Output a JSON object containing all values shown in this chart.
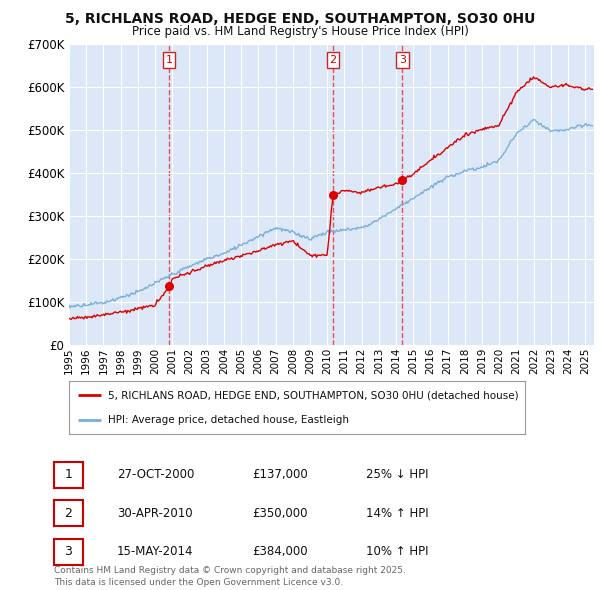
{
  "title": "5, RICHLANS ROAD, HEDGE END, SOUTHAMPTON, SO30 0HU",
  "subtitle": "Price paid vs. HM Land Registry's House Price Index (HPI)",
  "ylim": [
    0,
    700000
  ],
  "yticks": [
    0,
    100000,
    200000,
    300000,
    400000,
    500000,
    600000,
    700000
  ],
  "ytick_labels": [
    "£0",
    "£100K",
    "£200K",
    "£300K",
    "£400K",
    "£500K",
    "£600K",
    "£700K"
  ],
  "background_color": "#dce8f8",
  "grid_color": "#ffffff",
  "sale_color": "#dd0000",
  "hpi_color": "#7aaed6",
  "vline_color": "#ee3333",
  "sale_points": [
    {
      "date": 2000.82,
      "price": 137000,
      "label": "1"
    },
    {
      "date": 2010.33,
      "price": 350000,
      "label": "2"
    },
    {
      "date": 2014.37,
      "price": 384000,
      "label": "3"
    }
  ],
  "table_rows": [
    {
      "num": "1",
      "date": "27-OCT-2000",
      "price": "£137,000",
      "hpi": "25% ↓ HPI"
    },
    {
      "num": "2",
      "date": "30-APR-2010",
      "price": "£350,000",
      "hpi": "14% ↑ HPI"
    },
    {
      "num": "3",
      "date": "15-MAY-2014",
      "price": "£384,000",
      "hpi": "10% ↑ HPI"
    }
  ],
  "legend_sale": "5, RICHLANS ROAD, HEDGE END, SOUTHAMPTON, SO30 0HU (detached house)",
  "legend_hpi": "HPI: Average price, detached house, Eastleigh",
  "footer": "Contains HM Land Registry data © Crown copyright and database right 2025.\nThis data is licensed under the Open Government Licence v3.0.",
  "xmin": 1995.0,
  "xmax": 2025.5
}
